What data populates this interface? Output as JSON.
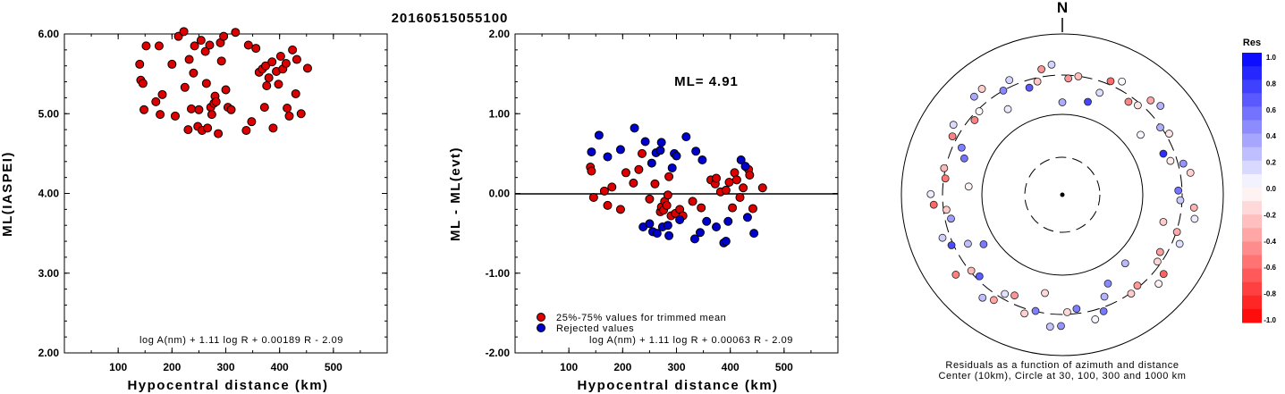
{
  "title": "20160515055100",
  "colors": {
    "red": "#dd0000",
    "blue": "#0000cc",
    "axis": "#000000"
  },
  "left_panel": {
    "ylabel": "ML(IASPEI)",
    "xlabel": "Hypocentral distance (km)",
    "formula": "log A(nm) + 1.11 log R + 0.00189 R - 2.09",
    "yticks": [
      "2.00",
      "3.00",
      "4.00",
      "5.00",
      "6.00"
    ],
    "xticks": [
      "100",
      "200",
      "300",
      "400",
      "500"
    ]
  },
  "middle_panel": {
    "ylabel": "ML - ML(evt)",
    "xlabel": "Hypocentral distance (km)",
    "ml_label": "ML= 4.91",
    "legend": [
      "25%-75% values for trimmed mean",
      "Rejected values"
    ],
    "formula": "log A(nm) + 1.11 log R + 0.00063 R - 2.09",
    "yticks": [
      "-2.00",
      "-1.00",
      "0.00",
      "1.00",
      "2.00"
    ],
    "xticks": [
      "100",
      "200",
      "300",
      "400",
      "500"
    ]
  },
  "right_panel": {
    "north": "N",
    "caption1": "Residuals as a function of azimuth and distance",
    "caption2": "Center (10km), Circle at 30, 100, 300 and 1000 km",
    "colorbar_title": "Res",
    "colorbar_labels": [
      "1.0",
      "0.8",
      "0.6",
      "0.4",
      "0.2",
      "0.0",
      "-0.2",
      "-0.4",
      "-0.6",
      "-0.8",
      "-1.0"
    ]
  },
  "chart_data": [
    {
      "type": "scatter",
      "title": "20160515055100",
      "xlabel": "Hypocentral distance (km)",
      "ylabel": "ML(IASPEI)",
      "xlim": [
        0,
        600
      ],
      "ylim": [
        2.0,
        6.0
      ],
      "series": [
        {
          "points": [
            [
              140,
              5.62
            ],
            [
              142,
              5.42
            ],
            [
              146,
              5.38
            ],
            [
              148,
              5.05
            ],
            [
              152,
              5.85
            ],
            [
              170,
              5.15
            ],
            [
              176,
              5.85
            ],
            [
              178,
              4.99
            ],
            [
              182,
              5.24
            ],
            [
              200,
              5.62
            ],
            [
              206,
              4.97
            ],
            [
              212,
              5.97
            ],
            [
              222,
              6.03
            ],
            [
              224,
              5.33
            ],
            [
              230,
              4.8
            ],
            [
              232,
              5.68
            ],
            [
              236,
              5.06
            ],
            [
              240,
              5.51
            ],
            [
              242,
              5.85
            ],
            [
              248,
              4.84
            ],
            [
              250,
              5.05
            ],
            [
              254,
              5.92
            ],
            [
              256,
              4.79
            ],
            [
              262,
              5.78
            ],
            [
              264,
              5.38
            ],
            [
              266,
              4.82
            ],
            [
              270,
              5.86
            ],
            [
              272,
              5.08
            ],
            [
              274,
              4.99
            ],
            [
              278,
              5.13
            ],
            [
              280,
              5.22
            ],
            [
              282,
              5.15
            ],
            [
              286,
              4.75
            ],
            [
              290,
              5.89
            ],
            [
              292,
              5.66
            ],
            [
              296,
              5.97
            ],
            [
              300,
              5.3
            ],
            [
              304,
              5.08
            ],
            [
              310,
              5.05
            ],
            [
              318,
              6.02
            ],
            [
              338,
              4.79
            ],
            [
              342,
              5.86
            ],
            [
              348,
              4.9
            ],
            [
              356,
              5.82
            ],
            [
              362,
              5.52
            ],
            [
              368,
              5.56
            ],
            [
              372,
              5.08
            ],
            [
              374,
              5.6
            ],
            [
              376,
              5.35
            ],
            [
              380,
              5.45
            ],
            [
              386,
              5.65
            ],
            [
              388,
              4.82
            ],
            [
              394,
              5.53
            ],
            [
              398,
              5.37
            ],
            [
              402,
              5.72
            ],
            [
              406,
              5.56
            ],
            [
              412,
              5.63
            ],
            [
              414,
              5.07
            ],
            [
              418,
              4.97
            ],
            [
              424,
              5.8
            ],
            [
              430,
              5.25
            ],
            [
              432,
              5.68
            ],
            [
              440,
              5.0
            ],
            [
              452,
              5.57
            ]
          ]
        }
      ]
    },
    {
      "type": "scatter",
      "xlabel": "Hypocentral distance (km)",
      "ylabel": "ML - ML(evt)",
      "xlim": [
        0,
        600
      ],
      "ylim": [
        -2.0,
        2.0
      ],
      "series": [
        {
          "name": "25%-75% values for trimmed mean",
          "color": "#dd0000",
          "points": [
            [
              140,
              0.33
            ],
            [
              142,
              0.28
            ],
            [
              146,
              -0.05
            ],
            [
              166,
              0.03
            ],
            [
              172,
              -0.15
            ],
            [
              180,
              0.08
            ],
            [
              196,
              -0.2
            ],
            [
              206,
              0.26
            ],
            [
              220,
              0.13
            ],
            [
              230,
              0.3
            ],
            [
              236,
              0.5
            ],
            [
              250,
              -0.07
            ],
            [
              260,
              0.12
            ],
            [
              270,
              -0.23
            ],
            [
              272,
              -0.17
            ],
            [
              276,
              -0.21
            ],
            [
              278,
              -0.1
            ],
            [
              282,
              -0.15
            ],
            [
              284,
              -0.02
            ],
            [
              286,
              0.21
            ],
            [
              290,
              -0.28
            ],
            [
              298,
              -0.25
            ],
            [
              306,
              -0.2
            ],
            [
              312,
              -0.28
            ],
            [
              330,
              -0.1
            ],
            [
              346,
              -0.18
            ],
            [
              364,
              0.17
            ],
            [
              372,
              0.12
            ],
            [
              374,
              0.19
            ],
            [
              382,
              0.02
            ],
            [
              392,
              0.04
            ],
            [
              398,
              0.14
            ],
            [
              404,
              -0.18
            ],
            [
              408,
              0.26
            ],
            [
              412,
              0.17
            ],
            [
              418,
              -0.05
            ],
            [
              424,
              0.07
            ],
            [
              434,
              0.3
            ],
            [
              436,
              0.23
            ],
            [
              442,
              -0.19
            ],
            [
              460,
              0.07
            ]
          ]
        },
        {
          "name": "Rejected values",
          "color": "#0000cc",
          "points": [
            [
              142,
              0.52
            ],
            [
              156,
              0.73
            ],
            [
              172,
              0.46
            ],
            [
              196,
              0.55
            ],
            [
              222,
              0.82
            ],
            [
              238,
              -0.42
            ],
            [
              242,
              0.65
            ],
            [
              250,
              -0.38
            ],
            [
              254,
              0.38
            ],
            [
              256,
              -0.48
            ],
            [
              262,
              0.51
            ],
            [
              264,
              -0.5
            ],
            [
              270,
              0.54
            ],
            [
              272,
              0.64
            ],
            [
              274,
              -0.42
            ],
            [
              284,
              -0.4
            ],
            [
              286,
              -0.53
            ],
            [
              292,
              0.32
            ],
            [
              296,
              0.5
            ],
            [
              300,
              0.47
            ],
            [
              306,
              -0.33
            ],
            [
              318,
              0.71
            ],
            [
              334,
              -0.57
            ],
            [
              336,
              0.53
            ],
            [
              344,
              -0.49
            ],
            [
              348,
              0.42
            ],
            [
              356,
              -0.35
            ],
            [
              374,
              -0.42
            ],
            [
              388,
              -0.62
            ],
            [
              392,
              -0.6
            ],
            [
              396,
              -0.35
            ],
            [
              420,
              0.42
            ],
            [
              428,
              0.34
            ],
            [
              432,
              -0.3
            ],
            [
              444,
              -0.5
            ]
          ]
        }
      ]
    }
  ]
}
